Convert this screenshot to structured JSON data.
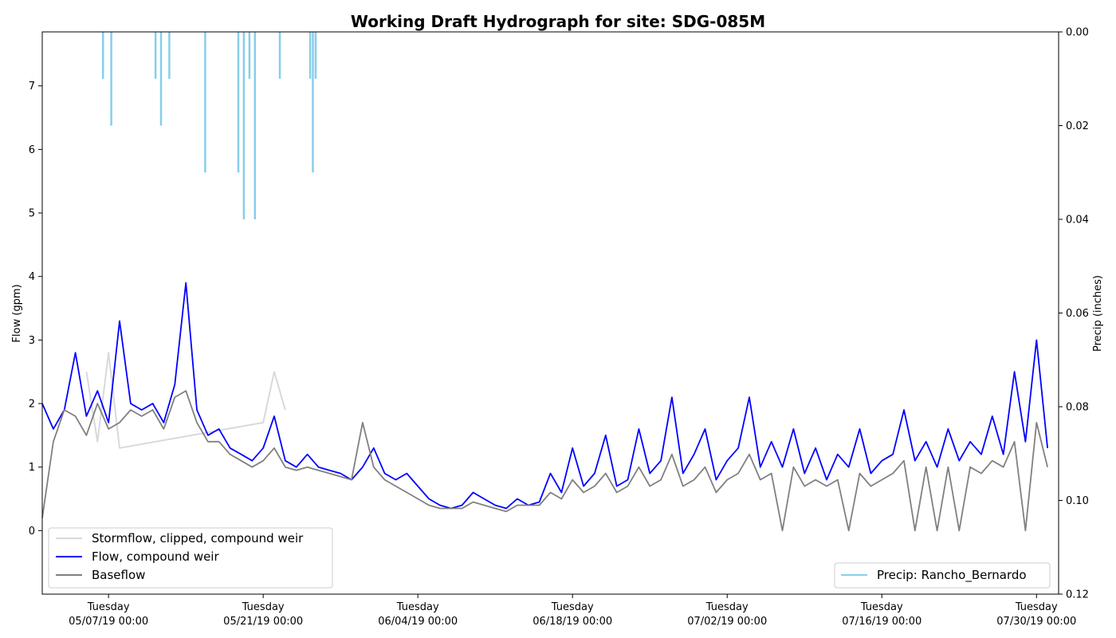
{
  "chart_data": {
    "type": "line",
    "title": "Working Draft Hydrograph for site: SDG-085M",
    "xlabel": "",
    "ylabel": "Flow (gpm)",
    "ylabel_right": "Precip (inches)",
    "x_start": "2019-05-01 00:00",
    "x_end": "2019-08-01 00:00",
    "ylim": [
      -1,
      7.85
    ],
    "ylim_right_inverted": [
      0.12,
      0.0
    ],
    "yticks": [
      0,
      1,
      2,
      3,
      4,
      5,
      6,
      7
    ],
    "yticks_right": [
      "0.00",
      "0.02",
      "0.04",
      "0.06",
      "0.08",
      "0.10",
      "0.12"
    ],
    "xticks": [
      {
        "line1": "Tuesday",
        "line2": "05/07/19 00:00",
        "date": "2019-05-07"
      },
      {
        "line1": "Tuesday",
        "line2": "05/21/19 00:00",
        "date": "2019-05-21"
      },
      {
        "line1": "Tuesday",
        "line2": "06/04/19 00:00",
        "date": "2019-06-04"
      },
      {
        "line1": "Tuesday",
        "line2": "06/18/19 00:00",
        "date": "2019-06-18"
      },
      {
        "line1": "Tuesday",
        "line2": "07/02/19 00:00",
        "date": "2019-07-02"
      },
      {
        "line1": "Tuesday",
        "line2": "07/16/19 00:00",
        "date": "2019-07-16"
      },
      {
        "line1": "Tuesday",
        "line2": "07/30/19 00:00",
        "date": "2019-07-30"
      }
    ],
    "legend_left": {
      "placement": "lower-left",
      "entries": [
        {
          "name": "Stormflow, clipped, compound weir",
          "color": "#d9d9d9"
        },
        {
          "name": "Flow, compound weir",
          "color": "#0000ff"
        },
        {
          "name": "Baseflow",
          "color": "#808080"
        }
      ]
    },
    "legend_right": {
      "placement": "lower-right",
      "entries": [
        {
          "name": "Precip: Rancho_Bernardo",
          "color": "#87ceeb"
        }
      ]
    },
    "series": [
      {
        "name": "Flow, compound weir",
        "color": "#0000ff",
        "x": [
          "2019-05-01 00:00",
          "2019-05-02 00:00",
          "2019-05-03 00:00",
          "2019-05-04 00:00",
          "2019-05-05 00:00",
          "2019-05-06 00:00",
          "2019-05-07 00:00",
          "2019-05-08 00:00",
          "2019-05-09 00:00",
          "2019-05-10 00:00",
          "2019-05-11 00:00",
          "2019-05-12 00:00",
          "2019-05-13 00:00",
          "2019-05-14 00:00",
          "2019-05-15 00:00",
          "2019-05-16 00:00",
          "2019-05-17 00:00",
          "2019-05-18 00:00",
          "2019-05-19 00:00",
          "2019-05-20 00:00",
          "2019-05-21 00:00",
          "2019-05-22 00:00",
          "2019-05-23 00:00",
          "2019-05-24 00:00",
          "2019-05-25 00:00",
          "2019-05-26 00:00",
          "2019-05-27 00:00",
          "2019-05-28 00:00",
          "2019-05-29 00:00",
          "2019-05-30 00:00",
          "2019-05-31 00:00",
          "2019-06-01 00:00",
          "2019-06-02 00:00",
          "2019-06-03 00:00",
          "2019-06-04 00:00",
          "2019-06-05 00:00",
          "2019-06-06 00:00",
          "2019-06-07 00:00",
          "2019-06-08 00:00",
          "2019-06-09 00:00",
          "2019-06-10 00:00",
          "2019-06-11 00:00",
          "2019-06-12 00:00",
          "2019-06-13 00:00",
          "2019-06-14 00:00",
          "2019-06-15 00:00",
          "2019-06-16 00:00",
          "2019-06-17 00:00",
          "2019-06-18 00:00",
          "2019-06-19 00:00",
          "2019-06-20 00:00",
          "2019-06-21 00:00",
          "2019-06-22 00:00",
          "2019-06-23 00:00",
          "2019-06-24 00:00",
          "2019-06-25 00:00",
          "2019-06-26 00:00",
          "2019-06-27 00:00",
          "2019-06-28 00:00",
          "2019-06-29 00:00",
          "2019-06-30 00:00",
          "2019-07-01 00:00",
          "2019-07-02 00:00",
          "2019-07-03 00:00",
          "2019-07-04 00:00",
          "2019-07-05 00:00",
          "2019-07-06 00:00",
          "2019-07-07 00:00",
          "2019-07-08 00:00",
          "2019-07-09 00:00",
          "2019-07-10 00:00",
          "2019-07-11 00:00",
          "2019-07-12 00:00",
          "2019-07-13 00:00",
          "2019-07-14 00:00",
          "2019-07-15 00:00",
          "2019-07-16 00:00",
          "2019-07-17 00:00",
          "2019-07-18 00:00",
          "2019-07-19 00:00",
          "2019-07-20 00:00",
          "2019-07-21 00:00",
          "2019-07-22 00:00",
          "2019-07-23 00:00",
          "2019-07-24 00:00",
          "2019-07-25 00:00",
          "2019-07-26 00:00",
          "2019-07-27 00:00",
          "2019-07-28 00:00",
          "2019-07-29 00:00",
          "2019-07-30 00:00",
          "2019-07-31 00:00"
        ],
        "y": [
          2.0,
          1.6,
          1.9,
          2.8,
          1.8,
          2.2,
          1.7,
          3.3,
          2.0,
          1.9,
          2.0,
          1.7,
          2.3,
          3.9,
          1.9,
          1.5,
          1.6,
          1.3,
          1.2,
          1.1,
          1.3,
          1.8,
          1.1,
          1.0,
          1.2,
          1.0,
          0.95,
          0.9,
          0.8,
          1.0,
          1.3,
          0.9,
          0.8,
          0.9,
          0.7,
          0.5,
          0.4,
          0.35,
          0.4,
          0.6,
          0.5,
          0.4,
          0.35,
          0.5,
          0.4,
          0.45,
          0.9,
          0.6,
          1.3,
          0.7,
          0.9,
          1.5,
          0.7,
          0.8,
          1.6,
          0.9,
          1.1,
          2.1,
          0.9,
          1.2,
          1.6,
          0.8,
          1.1,
          1.3,
          2.1,
          1.0,
          1.4,
          1.0,
          1.6,
          0.9,
          1.3,
          0.8,
          1.2,
          1.0,
          1.6,
          0.9,
          1.1,
          1.2,
          1.9,
          1.1,
          1.4,
          1.0,
          1.6,
          1.1,
          1.4,
          1.2,
          1.8,
          1.2,
          2.5,
          1.4,
          3.0,
          1.3
        ]
      },
      {
        "name": "Baseflow",
        "color": "#808080",
        "x": [
          "2019-05-01 00:00",
          "2019-05-02 00:00",
          "2019-05-03 00:00",
          "2019-05-04 00:00",
          "2019-05-05 00:00",
          "2019-05-06 00:00",
          "2019-05-07 00:00",
          "2019-05-08 00:00",
          "2019-05-09 00:00",
          "2019-05-10 00:00",
          "2019-05-11 00:00",
          "2019-05-12 00:00",
          "2019-05-13 00:00",
          "2019-05-14 00:00",
          "2019-05-15 00:00",
          "2019-05-16 00:00",
          "2019-05-17 00:00",
          "2019-05-18 00:00",
          "2019-05-19 00:00",
          "2019-05-20 00:00",
          "2019-05-21 00:00",
          "2019-05-22 00:00",
          "2019-05-23 00:00",
          "2019-05-24 00:00",
          "2019-05-25 00:00",
          "2019-05-26 00:00",
          "2019-05-27 00:00",
          "2019-05-28 00:00",
          "2019-05-29 00:00",
          "2019-05-30 00:00",
          "2019-05-31 00:00",
          "2019-06-01 00:00",
          "2019-06-02 00:00",
          "2019-06-03 00:00",
          "2019-06-04 00:00",
          "2019-06-05 00:00",
          "2019-06-06 00:00",
          "2019-06-07 00:00",
          "2019-06-08 00:00",
          "2019-06-09 00:00",
          "2019-06-10 00:00",
          "2019-06-11 00:00",
          "2019-06-12 00:00",
          "2019-06-13 00:00",
          "2019-06-14 00:00",
          "2019-06-15 00:00",
          "2019-06-16 00:00",
          "2019-06-17 00:00",
          "2019-06-18 00:00",
          "2019-06-19 00:00",
          "2019-06-20 00:00",
          "2019-06-21 00:00",
          "2019-06-22 00:00",
          "2019-06-23 00:00",
          "2019-06-24 00:00",
          "2019-06-25 00:00",
          "2019-06-26 00:00",
          "2019-06-27 00:00",
          "2019-06-28 00:00",
          "2019-06-29 00:00",
          "2019-06-30 00:00",
          "2019-07-01 00:00",
          "2019-07-02 00:00",
          "2019-07-03 00:00",
          "2019-07-04 00:00",
          "2019-07-05 00:00",
          "2019-07-06 00:00",
          "2019-07-07 00:00",
          "2019-07-08 00:00",
          "2019-07-09 00:00",
          "2019-07-10 00:00",
          "2019-07-11 00:00",
          "2019-07-12 00:00",
          "2019-07-13 00:00",
          "2019-07-14 00:00",
          "2019-07-15 00:00",
          "2019-07-16 00:00",
          "2019-07-17 00:00",
          "2019-07-18 00:00",
          "2019-07-19 00:00",
          "2019-07-20 00:00",
          "2019-07-21 00:00",
          "2019-07-22 00:00",
          "2019-07-23 00:00",
          "2019-07-24 00:00",
          "2019-07-25 00:00",
          "2019-07-26 00:00",
          "2019-07-27 00:00",
          "2019-07-28 00:00",
          "2019-07-29 00:00",
          "2019-07-30 00:00",
          "2019-07-31 00:00"
        ],
        "y": [
          0.2,
          1.4,
          1.9,
          1.8,
          1.5,
          2.0,
          1.6,
          1.7,
          1.9,
          1.8,
          1.9,
          1.6,
          2.1,
          2.2,
          1.7,
          1.4,
          1.4,
          1.2,
          1.1,
          1.0,
          1.1,
          1.3,
          1.0,
          0.95,
          1.0,
          0.95,
          0.9,
          0.85,
          0.8,
          1.7,
          1.0,
          0.8,
          0.7,
          0.6,
          0.5,
          0.4,
          0.35,
          0.35,
          0.35,
          0.45,
          0.4,
          0.35,
          0.3,
          0.4,
          0.4,
          0.4,
          0.6,
          0.5,
          0.8,
          0.6,
          0.7,
          0.9,
          0.6,
          0.7,
          1.0,
          0.7,
          0.8,
          1.2,
          0.7,
          0.8,
          1.0,
          0.6,
          0.8,
          0.9,
          1.2,
          0.8,
          0.9,
          0.0,
          1.0,
          0.7,
          0.8,
          0.7,
          0.8,
          0.0,
          0.9,
          0.7,
          0.8,
          0.9,
          1.1,
          0.0,
          1.0,
          0.0,
          1.0,
          0.0,
          1.0,
          0.9,
          1.1,
          1.0,
          1.4,
          0.0,
          1.7,
          1.0
        ]
      },
      {
        "name": "Stormflow, clipped, compound weir",
        "color": "#d9d9d9",
        "x": [
          "2019-05-05 00:00",
          "2019-05-06 00:00",
          "2019-05-07 00:00",
          "2019-05-08 00:00",
          "2019-05-21 00:00",
          "2019-05-22 00:00",
          "2019-05-23 00:00"
        ],
        "y": [
          2.5,
          1.4,
          2.8,
          1.3,
          1.7,
          2.5,
          1.9
        ]
      },
      {
        "name": "Precip: Rancho_Bernardo",
        "color": "#87ceeb",
        "axis": "right",
        "type": "bars",
        "x": [
          "2019-05-06 12:00",
          "2019-05-07 06:00",
          "2019-05-11 06:00",
          "2019-05-11 18:00",
          "2019-05-12 12:00",
          "2019-05-15 18:00",
          "2019-05-18 18:00",
          "2019-05-19 06:00",
          "2019-05-19 18:00",
          "2019-05-20 06:00",
          "2019-05-22 12:00",
          "2019-05-25 06:00",
          "2019-05-25 12:00",
          "2019-05-25 18:00"
        ],
        "y": [
          0.01,
          0.02,
          0.01,
          0.02,
          0.01,
          0.03,
          0.03,
          0.04,
          0.01,
          0.04,
          0.01,
          0.01,
          0.03,
          0.01
        ]
      }
    ]
  }
}
